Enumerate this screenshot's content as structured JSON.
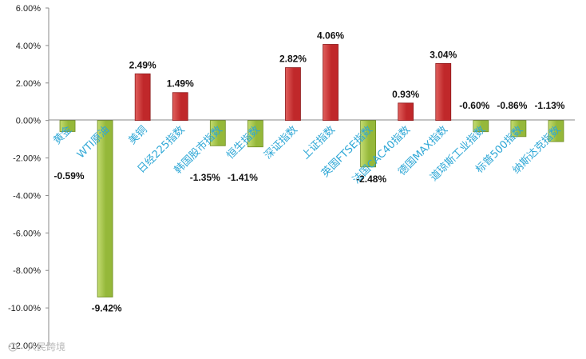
{
  "chart_data": {
    "type": "bar",
    "categories": [
      "黄金",
      "WTI原油",
      "美铜",
      "日经225指数",
      "韩国股市指数",
      "恒生指数",
      "深证指数",
      "上证指数",
      "英国FTSE指数",
      "法国CAC40指数",
      "德国MAX指数",
      "道琼斯工业指数",
      "标普500指数",
      "纳斯达克指数"
    ],
    "values": [
      -0.59,
      -9.42,
      2.49,
      1.49,
      -1.35,
      -1.41,
      2.82,
      4.06,
      -2.48,
      0.93,
      3.04,
      -0.6,
      -0.86,
      -1.13
    ],
    "value_labels": [
      "-0.59%",
      "-9.42%",
      "2.49%",
      "1.49%",
      "-1.35%",
      "-1.41%",
      "2.82%",
      "4.06%",
      "-2.48%",
      "0.93%",
      "3.04%",
      "-0.60%",
      "-0.86%",
      "-1.13%"
    ],
    "ylim": [
      -12,
      6
    ],
    "yticks": [
      "6.00%",
      "4.00%",
      "2.00%",
      "0.00%",
      "-2.00%",
      "-4.00%",
      "-6.00%",
      "-8.00%",
      "-10.00%",
      "-12.00%"
    ],
    "ytick_values": [
      6,
      4,
      2,
      0,
      -2,
      -4,
      -6,
      -8,
      -10,
      -12
    ],
    "title": "",
    "xlabel": "",
    "ylabel": "",
    "grid": false,
    "legend": "none",
    "colors": {
      "positive": "#c0282a",
      "negative": "#95b83a",
      "category_label": "#2ea7d6"
    }
  },
  "watermark": {
    "text": "人民跨境"
  }
}
